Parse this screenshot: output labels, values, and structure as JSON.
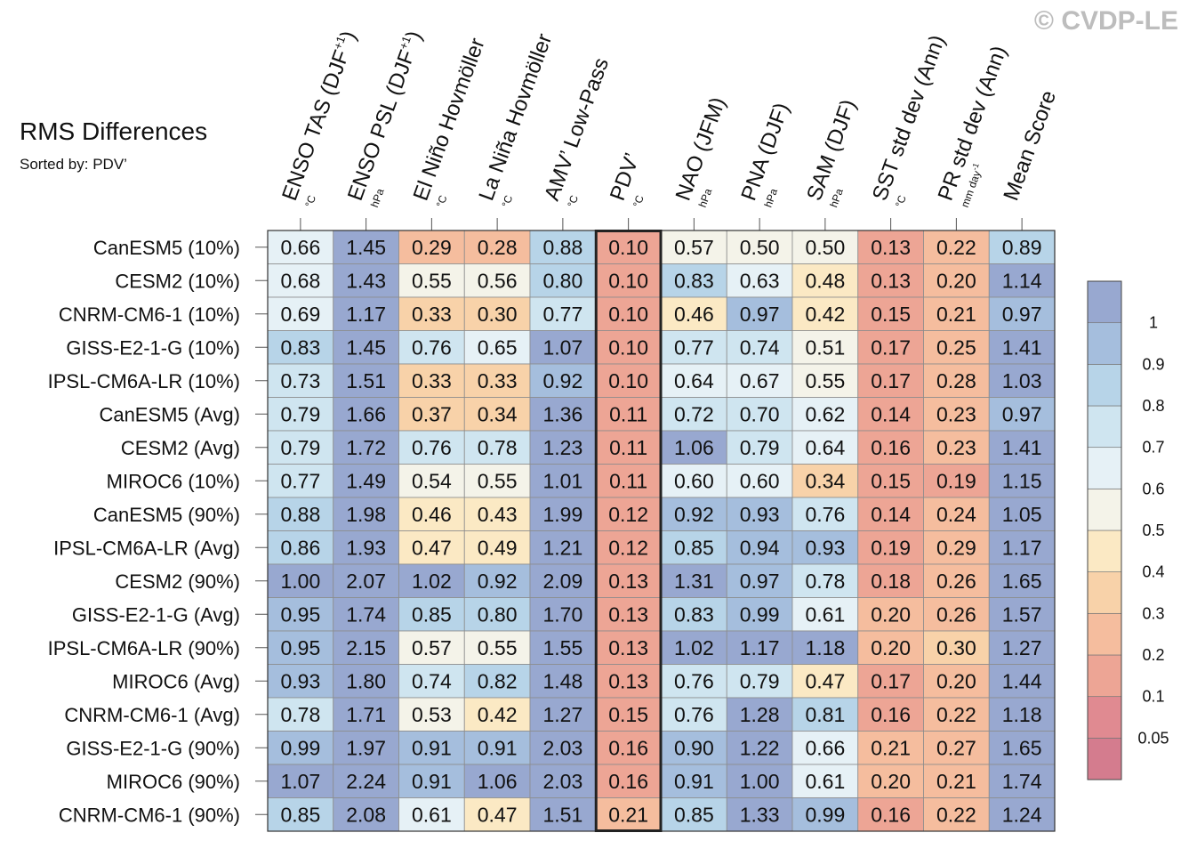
{
  "title": "RMS Differences",
  "subtitle": "Sorted by: PDV’",
  "watermark": "© CVDP-LE",
  "chart_data": {
    "type": "heatmap",
    "columns": [
      {
        "label": "ENSO TAS (DJF",
        "sup": "+1",
        "tail": ")",
        "unit": "°C"
      },
      {
        "label": "ENSO PSL (DJF",
        "sup": "+1",
        "tail": ")",
        "unit": "hPa"
      },
      {
        "label": "El Niño Hovmöller",
        "sup": "",
        "tail": "",
        "unit": "°C"
      },
      {
        "label": "La Niña Hovmöller",
        "sup": "",
        "tail": "",
        "unit": "°C"
      },
      {
        "label": "AMV’ Low-Pass",
        "sup": "",
        "tail": "",
        "unit": "°C"
      },
      {
        "label": "PDV’",
        "sup": "",
        "tail": "",
        "unit": "°C"
      },
      {
        "label": "NAO (JFM)",
        "sup": "",
        "tail": "",
        "unit": "hPa"
      },
      {
        "label": "PNA (DJF)",
        "sup": "",
        "tail": "",
        "unit": "hPa"
      },
      {
        "label": "SAM (DJF)",
        "sup": "",
        "tail": "",
        "unit": "hPa"
      },
      {
        "label": "SST std dev (Ann)",
        "sup": "",
        "tail": "",
        "unit": "°C"
      },
      {
        "label": "PR std dev (Ann)",
        "sup": "",
        "tail": "",
        "unit": "mm day",
        "unit_sup": "-1"
      },
      {
        "label": "Mean Score",
        "sup": "",
        "tail": "",
        "unit": ""
      }
    ],
    "rows": [
      "CanESM5 (10%)",
      "CESM2 (10%)",
      "CNRM-CM6-1 (10%)",
      "GISS-E2-1-G (10%)",
      "IPSL-CM6A-LR (10%)",
      "CanESM5 (Avg)",
      "CESM2 (Avg)",
      "MIROC6 (10%)",
      "CanESM5 (90%)",
      "IPSL-CM6A-LR (Avg)",
      "CESM2 (90%)",
      "GISS-E2-1-G (Avg)",
      "IPSL-CM6A-LR (90%)",
      "MIROC6 (Avg)",
      "CNRM-CM6-1 (Avg)",
      "GISS-E2-1-G (90%)",
      "MIROC6 (90%)",
      "CNRM-CM6-1 (90%)"
    ],
    "values": [
      [
        0.66,
        1.45,
        0.29,
        0.28,
        0.88,
        0.1,
        0.57,
        0.5,
        0.5,
        0.13,
        0.22,
        0.89
      ],
      [
        0.68,
        1.43,
        0.55,
        0.56,
        0.8,
        0.1,
        0.83,
        0.63,
        0.48,
        0.13,
        0.2,
        1.14
      ],
      [
        0.69,
        1.17,
        0.33,
        0.3,
        0.77,
        0.1,
        0.46,
        0.97,
        0.42,
        0.15,
        0.21,
        0.97
      ],
      [
        0.83,
        1.45,
        0.76,
        0.65,
        1.07,
        0.1,
        0.77,
        0.74,
        0.51,
        0.17,
        0.25,
        1.41
      ],
      [
        0.73,
        1.51,
        0.33,
        0.33,
        0.92,
        0.1,
        0.64,
        0.67,
        0.55,
        0.17,
        0.28,
        1.03
      ],
      [
        0.79,
        1.66,
        0.37,
        0.34,
        1.36,
        0.11,
        0.72,
        0.7,
        0.62,
        0.14,
        0.23,
        0.97
      ],
      [
        0.79,
        1.72,
        0.76,
        0.78,
        1.23,
        0.11,
        1.06,
        0.79,
        0.64,
        0.16,
        0.23,
        1.41
      ],
      [
        0.77,
        1.49,
        0.54,
        0.55,
        1.01,
        0.11,
        0.6,
        0.6,
        0.34,
        0.15,
        0.19,
        1.15
      ],
      [
        0.88,
        1.98,
        0.46,
        0.43,
        1.99,
        0.12,
        0.92,
        0.93,
        0.76,
        0.14,
        0.24,
        1.05
      ],
      [
        0.86,
        1.93,
        0.47,
        0.49,
        1.21,
        0.12,
        0.85,
        0.94,
        0.93,
        0.19,
        0.29,
        1.17
      ],
      [
        1.0,
        2.07,
        1.02,
        0.92,
        2.09,
        0.13,
        1.31,
        0.97,
        0.78,
        0.18,
        0.26,
        1.65
      ],
      [
        0.95,
        1.74,
        0.85,
        0.8,
        1.7,
        0.13,
        0.83,
        0.99,
        0.61,
        0.2,
        0.26,
        1.57
      ],
      [
        0.95,
        2.15,
        0.57,
        0.55,
        1.55,
        0.13,
        1.02,
        1.17,
        1.18,
        0.2,
        0.3,
        1.27
      ],
      [
        0.93,
        1.8,
        0.74,
        0.82,
        1.48,
        0.13,
        0.76,
        0.79,
        0.47,
        0.17,
        0.2,
        1.44
      ],
      [
        0.78,
        1.71,
        0.53,
        0.42,
        1.27,
        0.15,
        0.76,
        1.28,
        0.81,
        0.16,
        0.22,
        1.18
      ],
      [
        0.99,
        1.97,
        0.91,
        0.91,
        2.03,
        0.16,
        0.9,
        1.22,
        0.66,
        0.21,
        0.27,
        1.65
      ],
      [
        1.07,
        2.24,
        0.91,
        1.06,
        2.03,
        0.16,
        0.91,
        1.0,
        0.61,
        0.2,
        0.21,
        1.74
      ],
      [
        0.85,
        2.08,
        0.61,
        0.47,
        1.51,
        0.21,
        0.85,
        1.33,
        0.99,
        0.16,
        0.22,
        1.24
      ]
    ],
    "highlighted_column": "PDV’",
    "colorbar": {
      "boundaries": [
        0,
        0.05,
        0.1,
        0.2,
        0.3,
        0.4,
        0.5,
        0.6,
        0.7,
        0.8,
        0.9,
        1,
        99
      ],
      "colors": [
        "#d47c8e",
        "#e08a91",
        "#eda595",
        "#f5bd9e",
        "#f8d2a9",
        "#fbe9c4",
        "#f4f3e9",
        "#e6f1f6",
        "#cfe5f0",
        "#b7d4e8",
        "#a5bedd",
        "#98a8d0"
      ],
      "tick_labels": [
        "0.05",
        "0.1",
        "0.2",
        "0.3",
        "0.4",
        "0.5",
        "0.6",
        "0.7",
        "0.8",
        "0.9",
        "1"
      ]
    }
  }
}
